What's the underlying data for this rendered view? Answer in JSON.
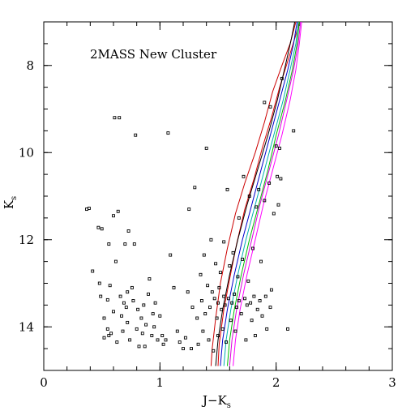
{
  "chart_data": {
    "type": "scatter",
    "title": "",
    "annotation": "2MASS New Cluster",
    "xlabel": "J−K",
    "xlabel_sub": "s",
    "ylabel": "K",
    "ylabel_sub": "s",
    "xlim": [
      0,
      3
    ],
    "ylim": [
      15,
      7
    ],
    "y_inverted": true,
    "grid": false,
    "x_major_ticks": [
      0,
      1,
      2,
      3
    ],
    "x_tick_labels": [
      "0",
      "1",
      "2",
      "3"
    ],
    "x_minor_step": 0.2,
    "y_major_ticks": [
      8,
      10,
      12,
      14
    ],
    "y_tick_labels": [
      "8",
      "10",
      "12",
      "14"
    ],
    "y_minor_step": 0.5,
    "marker": "open-square",
    "points": [
      [
        0.37,
        11.3
      ],
      [
        0.39,
        11.28
      ],
      [
        0.42,
        12.72
      ],
      [
        0.47,
        11.72
      ],
      [
        0.5,
        11.75
      ],
      [
        0.48,
        13.0
      ],
      [
        0.49,
        13.3
      ],
      [
        0.52,
        13.8
      ],
      [
        0.52,
        14.25
      ],
      [
        0.55,
        13.38
      ],
      [
        0.55,
        14.05
      ],
      [
        0.56,
        14.2
      ],
      [
        0.56,
        12.1
      ],
      [
        0.57,
        13.05
      ],
      [
        0.58,
        14.15
      ],
      [
        0.6,
        13.65
      ],
      [
        0.6,
        11.45
      ],
      [
        0.61,
        9.2
      ],
      [
        0.62,
        12.5
      ],
      [
        0.63,
        14.35
      ],
      [
        0.64,
        11.35
      ],
      [
        0.65,
        9.2
      ],
      [
        0.66,
        13.3
      ],
      [
        0.67,
        13.75
      ],
      [
        0.68,
        14.1
      ],
      [
        0.69,
        13.45
      ],
      [
        0.7,
        12.1
      ],
      [
        0.71,
        13.55
      ],
      [
        0.72,
        13.2
      ],
      [
        0.72,
        13.9
      ],
      [
        0.73,
        11.8
      ],
      [
        0.74,
        14.3
      ],
      [
        0.76,
        13.1
      ],
      [
        0.77,
        13.4
      ],
      [
        0.78,
        12.1
      ],
      [
        0.79,
        9.6
      ],
      [
        0.8,
        14.05
      ],
      [
        0.81,
        13.6
      ],
      [
        0.82,
        14.45
      ],
      [
        0.84,
        13.8
      ],
      [
        0.85,
        14.15
      ],
      [
        0.86,
        13.5
      ],
      [
        0.87,
        14.45
      ],
      [
        0.88,
        13.95
      ],
      [
        0.9,
        13.25
      ],
      [
        0.91,
        12.9
      ],
      [
        0.93,
        14.2
      ],
      [
        0.94,
        13.7
      ],
      [
        0.95,
        14.0
      ],
      [
        0.96,
        13.45
      ],
      [
        0.98,
        14.3
      ],
      [
        1.0,
        13.75
      ],
      [
        1.02,
        14.2
      ],
      [
        1.03,
        14.4
      ],
      [
        1.05,
        14.3
      ],
      [
        1.07,
        9.55
      ],
      [
        1.09,
        12.35
      ],
      [
        1.12,
        13.1
      ],
      [
        1.15,
        14.1
      ],
      [
        1.17,
        14.35
      ],
      [
        1.2,
        14.5
      ],
      [
        1.22,
        14.25
      ],
      [
        1.24,
        13.2
      ],
      [
        1.25,
        11.3
      ],
      [
        1.27,
        14.5
      ],
      [
        1.28,
        13.55
      ],
      [
        1.3,
        10.8
      ],
      [
        1.32,
        13.8
      ],
      [
        1.33,
        14.4
      ],
      [
        1.35,
        12.8
      ],
      [
        1.36,
        13.4
      ],
      [
        1.37,
        14.1
      ],
      [
        1.38,
        12.35
      ],
      [
        1.39,
        13.7
      ],
      [
        1.4,
        9.9
      ],
      [
        1.41,
        13.05
      ],
      [
        1.42,
        14.3
      ],
      [
        1.43,
        13.55
      ],
      [
        1.44,
        12.0
      ],
      [
        1.45,
        13.2
      ],
      [
        1.46,
        14.55
      ],
      [
        1.47,
        13.35
      ],
      [
        1.48,
        12.55
      ],
      [
        1.49,
        13.8
      ],
      [
        1.5,
        13.45
      ],
      [
        1.5,
        14.2
      ],
      [
        1.51,
        13.1
      ],
      [
        1.52,
        12.75
      ],
      [
        1.53,
        13.6
      ],
      [
        1.54,
        14.05
      ],
      [
        1.55,
        13.3
      ],
      [
        1.55,
        12.05
      ],
      [
        1.56,
        13.5
      ],
      [
        1.57,
        14.35
      ],
      [
        1.58,
        10.85
      ],
      [
        1.59,
        13.35
      ],
      [
        1.6,
        12.6
      ],
      [
        1.61,
        13.85
      ],
      [
        1.62,
        13.45
      ],
      [
        1.63,
        12.3
      ],
      [
        1.64,
        13.25
      ],
      [
        1.65,
        14.1
      ],
      [
        1.66,
        13.55
      ],
      [
        1.67,
        12.85
      ],
      [
        1.68,
        11.5
      ],
      [
        1.68,
        13.4
      ],
      [
        1.7,
        13.7
      ],
      [
        1.71,
        12.45
      ],
      [
        1.72,
        10.55
      ],
      [
        1.73,
        13.35
      ],
      [
        1.74,
        14.3
      ],
      [
        1.75,
        13.5
      ],
      [
        1.76,
        12.95
      ],
      [
        1.77,
        11.0
      ],
      [
        1.78,
        13.45
      ],
      [
        1.79,
        13.85
      ],
      [
        1.8,
        12.2
      ],
      [
        1.81,
        13.3
      ],
      [
        1.82,
        14.2
      ],
      [
        1.83,
        11.25
      ],
      [
        1.84,
        13.6
      ],
      [
        1.85,
        10.85
      ],
      [
        1.86,
        13.4
      ],
      [
        1.87,
        12.5
      ],
      [
        1.88,
        13.75
      ],
      [
        1.9,
        11.1
      ],
      [
        1.9,
        8.85
      ],
      [
        1.91,
        13.3
      ],
      [
        1.92,
        14.05
      ],
      [
        1.94,
        10.7
      ],
      [
        1.95,
        13.55
      ],
      [
        1.96,
        13.15
      ],
      [
        1.98,
        11.4
      ],
      [
        2.0,
        9.85
      ],
      [
        2.01,
        10.55
      ],
      [
        2.02,
        11.2
      ],
      [
        2.03,
        9.9
      ],
      [
        2.04,
        10.6
      ],
      [
        1.95,
        8.95
      ],
      [
        2.05,
        8.3
      ],
      [
        2.1,
        14.05
      ],
      [
        2.15,
        9.5
      ]
    ],
    "isochrones": [
      {
        "color": "#cc0000",
        "points": [
          [
            1.44,
            14.9
          ],
          [
            1.45,
            14.5
          ],
          [
            1.48,
            13.8
          ],
          [
            1.52,
            13.0
          ],
          [
            1.58,
            12.2
          ],
          [
            1.65,
            11.4
          ],
          [
            1.73,
            10.7
          ],
          [
            1.82,
            10.0
          ],
          [
            1.9,
            9.3
          ],
          [
            1.97,
            8.6
          ],
          [
            2.05,
            8.0
          ],
          [
            2.12,
            7.5
          ],
          [
            2.17,
            7.0
          ]
        ]
      },
      {
        "color": "#dd0000",
        "points": [
          [
            1.5,
            14.9
          ],
          [
            1.51,
            14.4
          ],
          [
            1.55,
            13.6
          ],
          [
            1.6,
            12.9
          ],
          [
            1.66,
            12.1
          ],
          [
            1.73,
            11.3
          ],
          [
            1.81,
            10.6
          ],
          [
            1.88,
            9.9
          ],
          [
            1.96,
            9.2
          ],
          [
            2.03,
            8.5
          ],
          [
            2.1,
            7.9
          ],
          [
            2.17,
            7.3
          ],
          [
            2.2,
            7.0
          ]
        ]
      },
      {
        "color": "#000000",
        "points": [
          [
            1.48,
            14.9
          ],
          [
            1.5,
            14.3
          ],
          [
            1.54,
            13.6
          ],
          [
            1.6,
            12.8
          ],
          [
            1.67,
            12.0
          ],
          [
            1.75,
            11.2
          ],
          [
            1.84,
            10.4
          ],
          [
            1.93,
            9.6
          ],
          [
            2.01,
            8.8
          ],
          [
            2.08,
            8.0
          ],
          [
            2.13,
            7.4
          ],
          [
            2.16,
            7.0
          ]
        ]
      },
      {
        "color": "#0000cc",
        "points": [
          [
            1.52,
            14.9
          ],
          [
            1.54,
            14.3
          ],
          [
            1.58,
            13.6
          ],
          [
            1.64,
            12.8
          ],
          [
            1.71,
            12.0
          ],
          [
            1.79,
            11.2
          ],
          [
            1.87,
            10.4
          ],
          [
            1.95,
            9.6
          ],
          [
            2.03,
            8.8
          ],
          [
            2.1,
            8.1
          ],
          [
            2.15,
            7.5
          ],
          [
            2.18,
            7.0
          ]
        ]
      },
      {
        "color": "#00b0b0",
        "points": [
          [
            1.55,
            14.9
          ],
          [
            1.57,
            14.3
          ],
          [
            1.61,
            13.6
          ],
          [
            1.67,
            12.8
          ],
          [
            1.74,
            12.0
          ],
          [
            1.82,
            11.2
          ],
          [
            1.9,
            10.4
          ],
          [
            1.98,
            9.6
          ],
          [
            2.06,
            8.8
          ],
          [
            2.12,
            8.1
          ],
          [
            2.17,
            7.5
          ],
          [
            2.19,
            7.0
          ]
        ]
      },
      {
        "color": "#00bb00",
        "points": [
          [
            1.58,
            14.9
          ],
          [
            1.6,
            14.3
          ],
          [
            1.64,
            13.6
          ],
          [
            1.7,
            12.8
          ],
          [
            1.77,
            12.0
          ],
          [
            1.85,
            11.2
          ],
          [
            1.93,
            10.4
          ],
          [
            2.0,
            9.6
          ],
          [
            2.08,
            8.8
          ],
          [
            2.14,
            8.1
          ],
          [
            2.18,
            7.5
          ],
          [
            2.2,
            7.0
          ]
        ]
      },
      {
        "color": "#dd00dd",
        "points": [
          [
            1.6,
            14.9
          ],
          [
            1.62,
            14.3
          ],
          [
            1.66,
            13.6
          ],
          [
            1.72,
            12.8
          ],
          [
            1.79,
            12.0
          ],
          [
            1.86,
            11.2
          ],
          [
            1.94,
            10.4
          ],
          [
            2.02,
            9.6
          ],
          [
            2.09,
            8.8
          ],
          [
            2.15,
            8.1
          ],
          [
            2.19,
            7.5
          ],
          [
            2.21,
            7.0
          ]
        ]
      },
      {
        "color": "#ff00ff",
        "points": [
          [
            1.63,
            14.9
          ],
          [
            1.65,
            14.3
          ],
          [
            1.69,
            13.6
          ],
          [
            1.75,
            12.8
          ],
          [
            1.82,
            12.0
          ],
          [
            1.89,
            11.2
          ],
          [
            1.97,
            10.4
          ],
          [
            2.05,
            9.6
          ],
          [
            2.12,
            8.8
          ],
          [
            2.17,
            8.1
          ],
          [
            2.2,
            7.5
          ],
          [
            2.22,
            7.0
          ]
        ]
      }
    ]
  }
}
